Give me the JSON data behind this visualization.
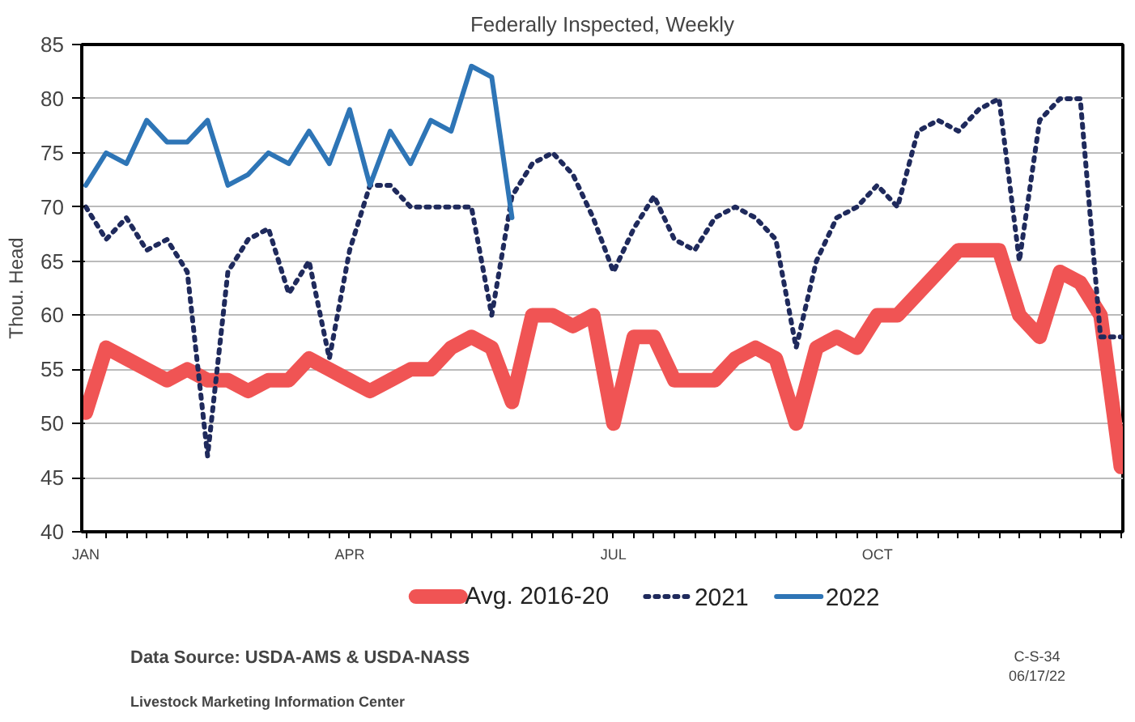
{
  "chart_data": {
    "type": "line",
    "title": "Federally Inspected, Weekly",
    "ylabel": "Thou. Head",
    "categories": [
      "JAN",
      null,
      null,
      null,
      null,
      null,
      null,
      null,
      null,
      null,
      null,
      null,
      null,
      "APR",
      null,
      null,
      null,
      null,
      null,
      null,
      null,
      null,
      null,
      null,
      null,
      null,
      "JUL",
      null,
      null,
      null,
      null,
      null,
      null,
      null,
      null,
      null,
      null,
      null,
      null,
      "OCT",
      null,
      null,
      null,
      null,
      null,
      null,
      null,
      null,
      null,
      null,
      null,
      null
    ],
    "ylim": [
      40,
      85
    ],
    "yticks": [
      40,
      45,
      50,
      55,
      60,
      65,
      70,
      75,
      80,
      85
    ],
    "grid": "y",
    "legend": "bottom",
    "series": [
      {
        "name": "Avg. 2016-20",
        "color": "#f05454",
        "line_style": "solid",
        "values": [
          51,
          57,
          56,
          55,
          54,
          55,
          54,
          54,
          53,
          54,
          54,
          56,
          55,
          54,
          53,
          54,
          55,
          55,
          57,
          58,
          57,
          52,
          60,
          60,
          59,
          60,
          50,
          58,
          58,
          54,
          54,
          54,
          56,
          57,
          56,
          50,
          57,
          58,
          57,
          60,
          60,
          62,
          64,
          66,
          66,
          66,
          60,
          58,
          64,
          63,
          60,
          46
        ]
      },
      {
        "name": "2021",
        "color": "#1f2a5c",
        "line_style": "dotted",
        "values": [
          70,
          67,
          69,
          66,
          67,
          64,
          47,
          64,
          67,
          68,
          62,
          65,
          56,
          66,
          72,
          72,
          70,
          70,
          70,
          70,
          60,
          71,
          74,
          75,
          73,
          69,
          64,
          68,
          71,
          67,
          66,
          69,
          70,
          69,
          67,
          57,
          65,
          69,
          70,
          72,
          70,
          77,
          78,
          77,
          79,
          80,
          65,
          78,
          80,
          80,
          58,
          58
        ]
      },
      {
        "name": "2022",
        "color": "#2e75b6",
        "line_style": "solid",
        "values": [
          72,
          75,
          74,
          78,
          76,
          76,
          78,
          72,
          73,
          75,
          74,
          77,
          74,
          79,
          72,
          77,
          74,
          78,
          77,
          83,
          82,
          69,
          null,
          null,
          null,
          null,
          null,
          null,
          null,
          null,
          null,
          null,
          null,
          null,
          null,
          null,
          null,
          null,
          null,
          null,
          null,
          null,
          null,
          null,
          null,
          null,
          null,
          null,
          null,
          null,
          null,
          null
        ]
      }
    ],
    "annotations": [
      "Data Source:  USDA-AMS & USDA-NASS",
      "Livestock Marketing Information Center",
      "C-S-34",
      "06/17/22"
    ]
  }
}
